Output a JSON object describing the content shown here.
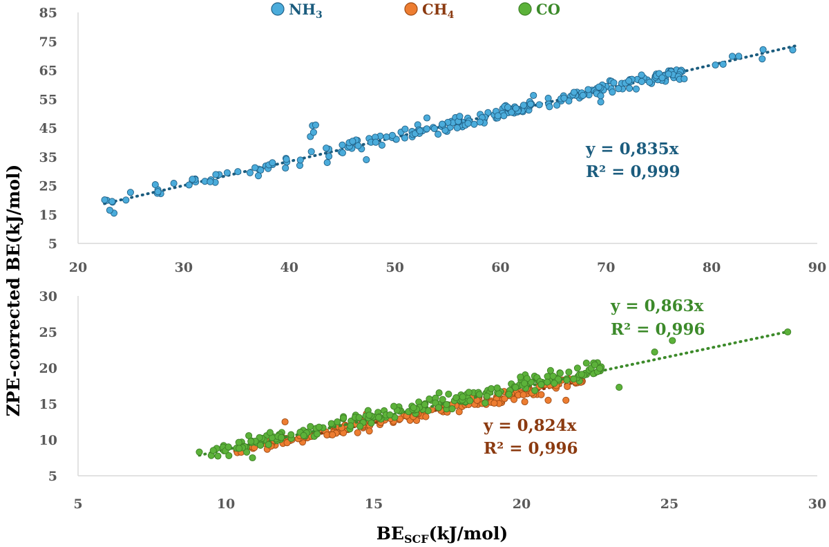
{
  "colors": {
    "nh3": "#4BACDB",
    "nh3_edge": "#1F5F85",
    "nh3_fit": "#1B5C7E",
    "ch4": "#ED7D31",
    "ch4_edge": "#9C4A14",
    "ch4_fit": "#8B3A10",
    "co": "#5CB23A",
    "co_edge": "#3D7F25",
    "co_fit": "#3C8A2A",
    "tick_text": "#595959",
    "axis": "#D9D9D9"
  },
  "y_axis_label": "ZPE-corrected BE(kJ/mol)",
  "x_axis_label": {
    "main": "BE",
    "subscript": "SCF",
    "unit": "(kJ/mol)"
  },
  "legend": [
    {
      "key": "nh3",
      "label": "NH",
      "subscript": "3"
    },
    {
      "key": "ch4",
      "label": "CH",
      "subscript": "4"
    },
    {
      "key": "co",
      "label": "CO",
      "subscript": ""
    }
  ],
  "chart_data": [
    {
      "type": "scatter",
      "panel": "top",
      "xlim": [
        20,
        90
      ],
      "ylim": [
        5,
        85
      ],
      "xticks": [
        20,
        30,
        40,
        50,
        60,
        70,
        80,
        90
      ],
      "yticks": [
        5,
        15,
        25,
        35,
        45,
        55,
        65,
        75,
        85
      ],
      "series": [
        {
          "name": "NH3",
          "color_key": "nh3",
          "n_points": 260,
          "slope": 0.835,
          "equation": "y = 0,835x",
          "r2": "R² = 0,999",
          "outliers": [
            [
              42.2,
              45.8
            ],
            [
              42.5,
              46.0
            ],
            [
              42.0,
              42.0
            ],
            [
              42.3,
              43.5
            ],
            [
              43.6,
              33.0
            ],
            [
              43.5,
              38.0
            ],
            [
              23.4,
              15.5
            ],
            [
              23.0,
              16.5
            ],
            [
              69.5,
              54.0
            ],
            [
              77.4,
              62.0
            ],
            [
              47.3,
              34.0
            ]
          ]
        }
      ]
    },
    {
      "type": "scatter",
      "panel": "bottom",
      "xlim": [
        5,
        30
      ],
      "ylim": [
        5,
        30
      ],
      "xticks": [
        5,
        10,
        15,
        20,
        25,
        30
      ],
      "yticks": [
        5,
        10,
        15,
        20,
        25,
        30
      ],
      "series": [
        {
          "name": "CH4",
          "color_key": "ch4",
          "n_points": 200,
          "slope": 0.824,
          "equation": "y = 0,824x",
          "r2": "R² = 0,996",
          "outliers": [
            [
              12.0,
              12.5
            ],
            [
              21.5,
              15.5
            ],
            [
              20.9,
              15.5
            ],
            [
              22.0,
              18.0
            ]
          ]
        },
        {
          "name": "CO",
          "color_key": "co",
          "n_points": 220,
          "slope": 0.863,
          "equation": "y = 0,863x",
          "r2": "R² = 0,996",
          "outliers": [
            [
              29.0,
              25.0
            ],
            [
              24.5,
              22.2
            ],
            [
              25.1,
              23.8
            ],
            [
              23.3,
              17.3
            ],
            [
              9.1,
              8.3
            ],
            [
              10.9,
              7.5
            ],
            [
              10.1,
              7.8
            ]
          ]
        }
      ]
    }
  ]
}
